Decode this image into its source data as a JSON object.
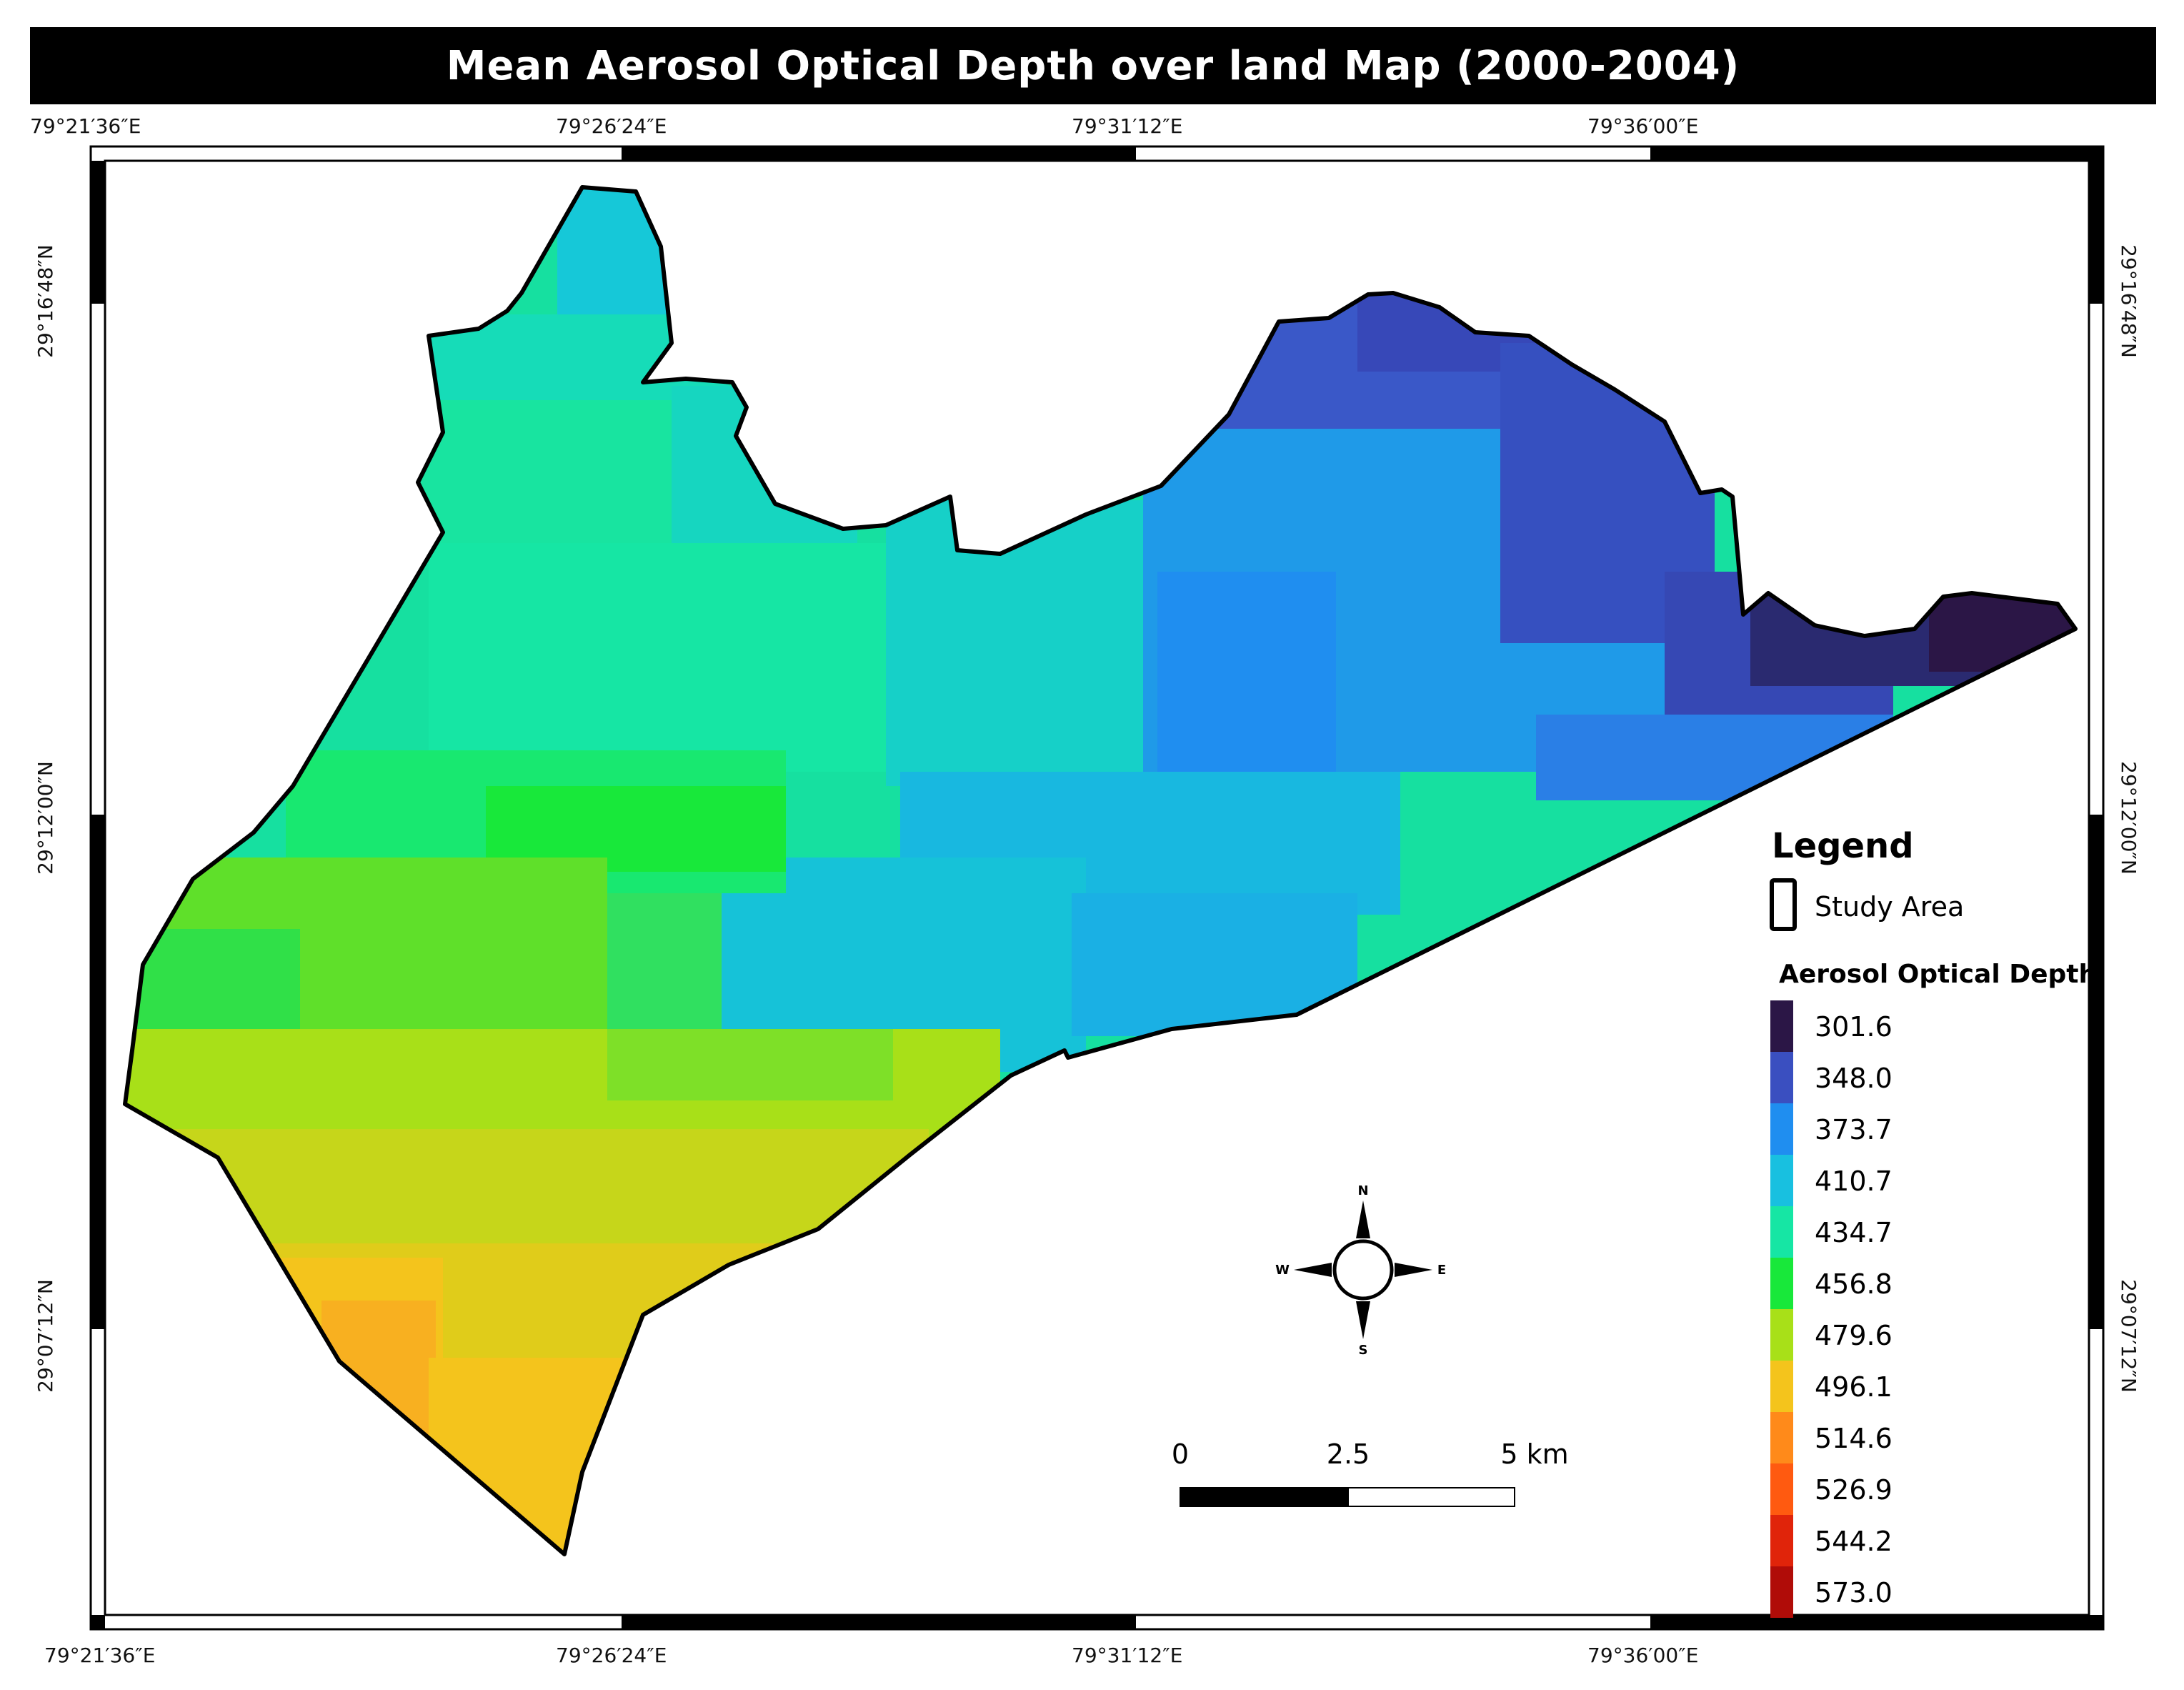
{
  "title": "Mean Aerosol Optical Depth over land Map (2000-2004)",
  "graticule": {
    "top_labels": [
      "79°21′36″E",
      "79°26′24″E",
      "79°31′12″E",
      "79°36′00″E"
    ],
    "bottom_labels": [
      "79°21′36″E",
      "79°26′24″E",
      "79°31′12″E",
      "79°36′00″E"
    ],
    "left_labels": [
      "29°16′48″N",
      "29°12′00″N",
      "29°07′12″N"
    ],
    "right_labels": [
      "29°16′48″N",
      "29°12′00″N",
      "29°07′12″N"
    ]
  },
  "legend": {
    "title": "Legend",
    "study_area_label": "Study Area",
    "ramp_title": "Aerosol Optical Depth",
    "classes": [
      {
        "value": "301.6",
        "color": "#2b1646"
      },
      {
        "value": "348.0",
        "color": "#3a4fc0"
      },
      {
        "value": "373.7",
        "color": "#1f8ef0"
      },
      {
        "value": "410.7",
        "color": "#18c0e0"
      },
      {
        "value": "434.7",
        "color": "#16e6a4"
      },
      {
        "value": "456.8",
        "color": "#18e83a"
      },
      {
        "value": "479.6",
        "color": "#a8e018"
      },
      {
        "value": "496.1",
        "color": "#f4c41c"
      },
      {
        "value": "514.6",
        "color": "#ff8a1a"
      },
      {
        "value": "526.9",
        "color": "#ff5a10"
      },
      {
        "value": "544.2",
        "color": "#e0240a"
      },
      {
        "value": "573.0",
        "color": "#b00c08"
      }
    ]
  },
  "north_arrow": {
    "n": "N",
    "s": "S",
    "e": "E",
    "w": "W"
  },
  "scale_bar": {
    "labels": [
      "0",
      "2.5",
      "5 km"
    ]
  },
  "colors": {
    "frame": "#000000",
    "background": "#ffffff",
    "boundary": "#000000"
  }
}
